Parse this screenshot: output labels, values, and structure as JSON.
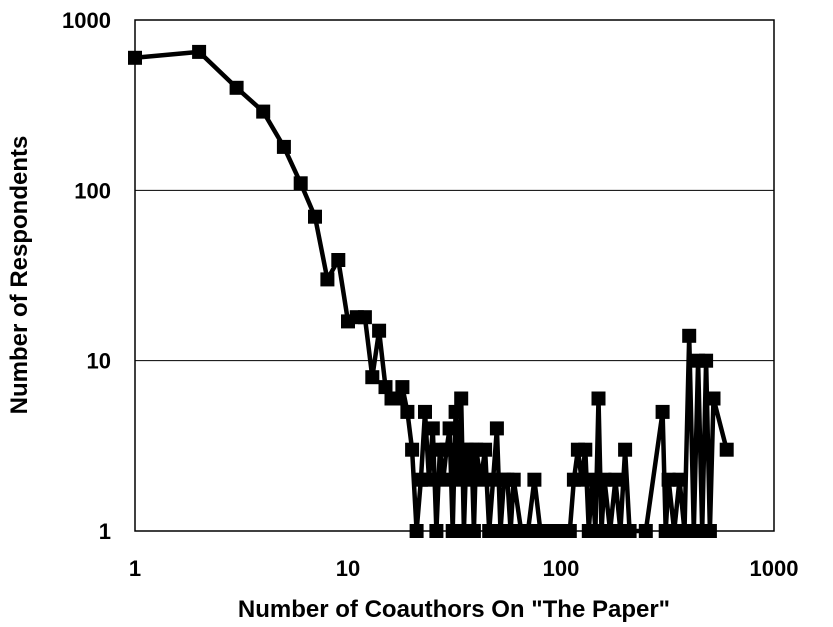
{
  "chart_data": {
    "type": "line",
    "title": "",
    "xlabel": "Number of Coauthors On \"The Paper\"",
    "ylabel": "Number of Respondents",
    "xscale": "log",
    "yscale": "log",
    "xlim": [
      1,
      1000
    ],
    "ylim": [
      1,
      1000
    ],
    "x_ticks": [
      "1",
      "10",
      "100",
      "1000"
    ],
    "y_ticks": [
      "1",
      "10",
      "100",
      "1000"
    ],
    "grid": "horizontal major gridlines",
    "legend": "none",
    "colors": {
      "line": "#000000",
      "grid": "#000000",
      "background": "#ffffff"
    },
    "series": [
      {
        "marker": "square",
        "points": [
          [
            1,
            600
          ],
          [
            2,
            650
          ],
          [
            3,
            400
          ],
          [
            4,
            290
          ],
          [
            5,
            180
          ],
          [
            6,
            110
          ],
          [
            7,
            70
          ],
          [
            8,
            30
          ],
          [
            9,
            39
          ],
          [
            10,
            17
          ],
          [
            11,
            18
          ],
          [
            12,
            18
          ],
          [
            13,
            8
          ],
          [
            14,
            15
          ],
          [
            15,
            7
          ],
          [
            16,
            6
          ],
          [
            17,
            6
          ],
          [
            18,
            7
          ],
          [
            19,
            5
          ],
          [
            20,
            3
          ],
          [
            21,
            1
          ],
          [
            22,
            2
          ],
          [
            23,
            5
          ],
          [
            24,
            2
          ],
          [
            25,
            4
          ],
          [
            26,
            1
          ],
          [
            27,
            3
          ],
          [
            28,
            2
          ],
          [
            29,
            3
          ],
          [
            30,
            4
          ],
          [
            31,
            1
          ],
          [
            32,
            5
          ],
          [
            33,
            2
          ],
          [
            34,
            6
          ],
          [
            35,
            1
          ],
          [
            36,
            3
          ],
          [
            37,
            2
          ],
          [
            38,
            3
          ],
          [
            39,
            1
          ],
          [
            40,
            3
          ],
          [
            42,
            2
          ],
          [
            44,
            3
          ],
          [
            46,
            1
          ],
          [
            48,
            2
          ],
          [
            50,
            4
          ],
          [
            52,
            1
          ],
          [
            54,
            2
          ],
          [
            56,
            2
          ],
          [
            58,
            1
          ],
          [
            60,
            2
          ],
          [
            65,
            1
          ],
          [
            70,
            1
          ],
          [
            75,
            2
          ],
          [
            80,
            1
          ],
          [
            90,
            1
          ],
          [
            100,
            1
          ],
          [
            110,
            1
          ],
          [
            115,
            2
          ],
          [
            120,
            3
          ],
          [
            125,
            2
          ],
          [
            130,
            3
          ],
          [
            135,
            1
          ],
          [
            140,
            2
          ],
          [
            145,
            1
          ],
          [
            150,
            6
          ],
          [
            155,
            1
          ],
          [
            160,
            2
          ],
          [
            170,
            1
          ],
          [
            180,
            2
          ],
          [
            190,
            1
          ],
          [
            200,
            3
          ],
          [
            210,
            1
          ],
          [
            250,
            1
          ],
          [
            300,
            5
          ],
          [
            310,
            1
          ],
          [
            320,
            2
          ],
          [
            340,
            1
          ],
          [
            360,
            2
          ],
          [
            380,
            1
          ],
          [
            400,
            14
          ],
          [
            420,
            1
          ],
          [
            440,
            10
          ],
          [
            460,
            1
          ],
          [
            480,
            10
          ],
          [
            500,
            1
          ],
          [
            520,
            6
          ],
          [
            600,
            3
          ]
        ]
      }
    ]
  }
}
